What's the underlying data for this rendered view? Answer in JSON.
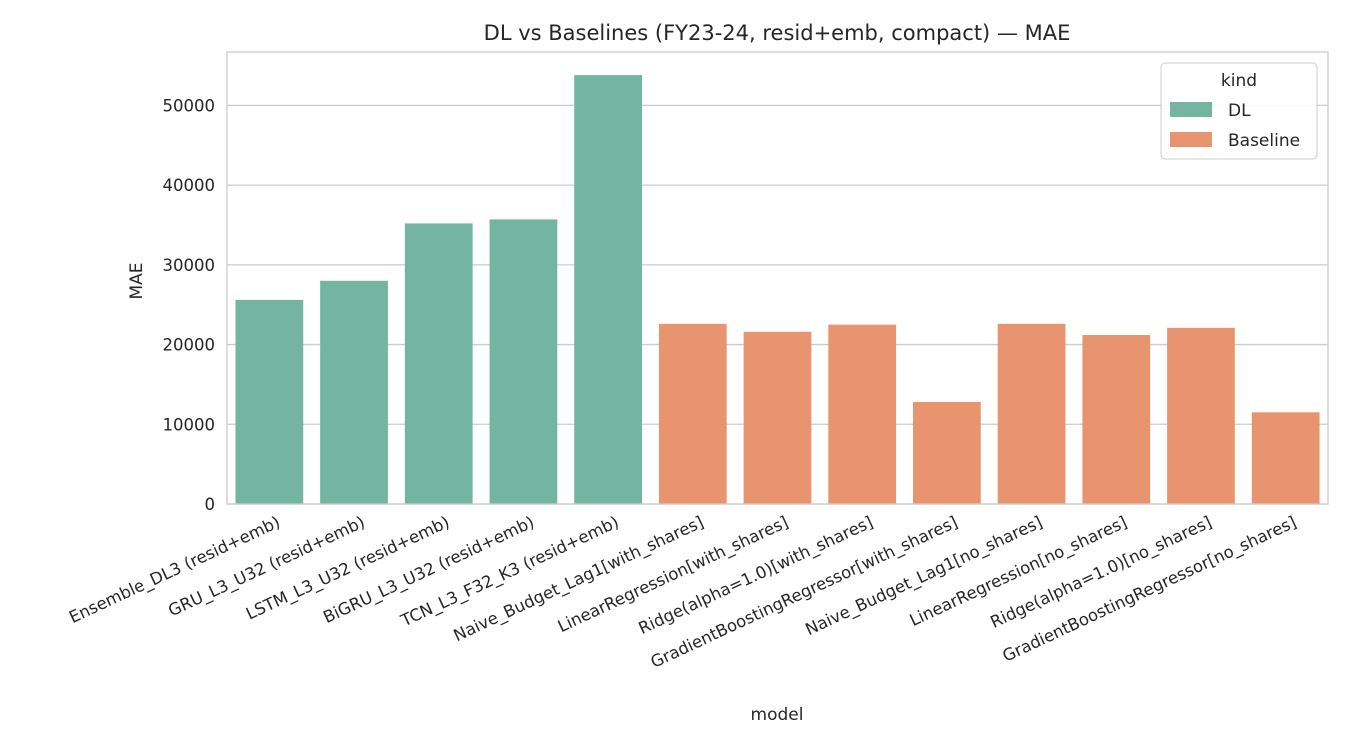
{
  "chart_data": {
    "type": "bar",
    "title": "DL vs Baselines (FY23-24, resid+emb, compact) — MAE",
    "xlabel": "model",
    "ylabel": "MAE",
    "ylim": [
      0,
      56700
    ],
    "yticks": [
      0,
      10000,
      20000,
      30000,
      40000,
      50000
    ],
    "grid": true,
    "legend": {
      "title": "kind",
      "placement": "top-right",
      "entries": [
        {
          "label": "DL",
          "color": "#73b5a1"
        },
        {
          "label": "Baseline",
          "color": "#e8956f"
        }
      ]
    },
    "categories": [
      "Ensemble_DL3 (resid+emb)",
      "GRU_L3_U32 (resid+emb)",
      "LSTM_L3_U32 (resid+emb)",
      "BiGRU_L3_U32 (resid+emb)",
      "TCN_L3_F32_K3 (resid+emb)",
      "Naive_Budget_Lag1[with_shares]",
      "LinearRegression[with_shares]",
      "Ridge(alpha=1.0)[with_shares]",
      "GradientBoostingRegressor[with_shares]",
      "Naive_Budget_Lag1[no_shares]",
      "LinearRegression[no_shares]",
      "Ridge(alpha=1.0)[no_shares]",
      "GradientBoostingRegressor[no_shares]"
    ],
    "values": [
      25600,
      28000,
      35200,
      35700,
      53800,
      22600,
      21600,
      22500,
      12800,
      22600,
      21200,
      22100,
      11500
    ],
    "kinds": [
      "DL",
      "DL",
      "DL",
      "DL",
      "DL",
      "Baseline",
      "Baseline",
      "Baseline",
      "Baseline",
      "Baseline",
      "Baseline",
      "Baseline",
      "Baseline"
    ],
    "colors": {
      "DL": "#73b5a1",
      "Baseline": "#e8956f"
    }
  }
}
